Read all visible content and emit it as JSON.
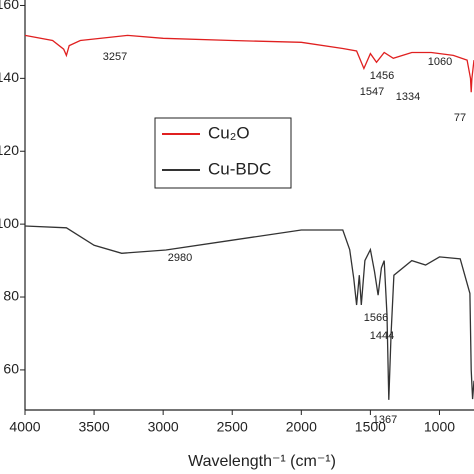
{
  "chart_data": {
    "type": "line",
    "x_label": "Wavelength⁻¹ (cm⁻¹)",
    "xlim": [
      4000,
      750
    ],
    "xticks": [
      4000,
      3500,
      3000,
      2500,
      2000,
      1500,
      1000
    ],
    "ylim": [
      49,
      161.5
    ],
    "yticks": [
      160,
      140,
      120,
      100,
      80,
      60
    ],
    "series": [
      {
        "name": "Cu₂O",
        "color": "#e02020",
        "x": [
          4000,
          3800,
          3720,
          3700,
          3680,
          3600,
          3257,
          3000,
          2500,
          2000,
          1700,
          1600,
          1547,
          1500,
          1456,
          1400,
          1334,
          1200,
          1060,
          900,
          800,
          775,
          770,
          765,
          750
        ],
        "values": [
          151.8,
          150.4,
          148,
          146.3,
          149,
          150.4,
          151.8,
          151,
          150.4,
          149.9,
          148.2,
          147.5,
          142.7,
          146.8,
          144.4,
          147.1,
          145.5,
          147.1,
          147.1,
          146.3,
          145,
          140,
          136.2,
          140,
          145
        ]
      },
      {
        "name": "Cu-BDC",
        "color": "#333333",
        "x": [
          4000,
          3700,
          3500,
          3300,
          2980,
          2500,
          2000,
          1700,
          1650,
          1620,
          1600,
          1580,
          1566,
          1540,
          1500,
          1470,
          1444,
          1420,
          1400,
          1380,
          1367,
          1350,
          1330,
          1200,
          1100,
          1000,
          850,
          780,
          770,
          760,
          750
        ],
        "values": [
          99.5,
          99,
          94.2,
          92,
          92.9,
          95.6,
          98.4,
          98.4,
          93,
          85,
          77.8,
          86,
          77.8,
          90,
          93,
          87,
          80.5,
          88,
          90,
          75,
          51.8,
          70,
          86,
          90,
          88.8,
          91,
          90.5,
          81,
          60,
          52,
          57
        ]
      }
    ],
    "annotations": [
      "3257",
      "1547",
      "1456",
      "1334",
      "1060",
      "77",
      "2980",
      "1566",
      "1444",
      "1367"
    ]
  }
}
